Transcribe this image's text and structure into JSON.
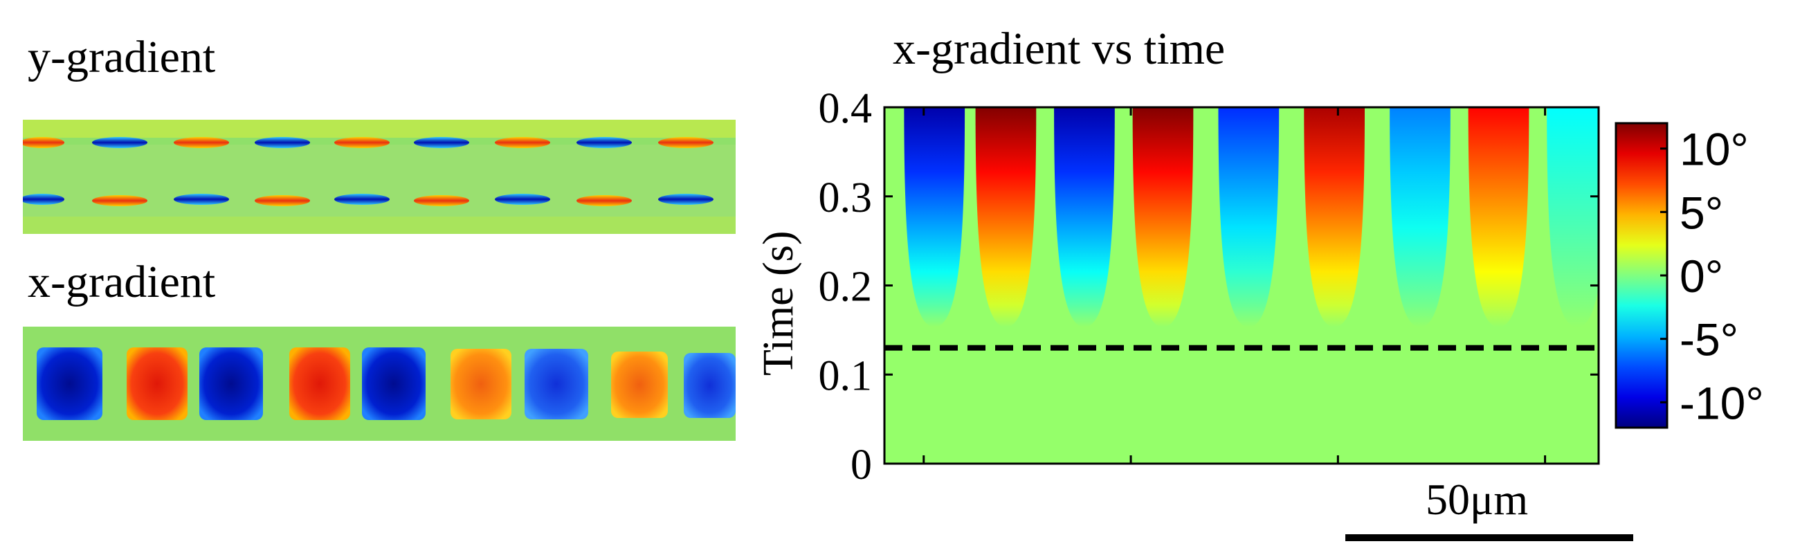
{
  "panels": {
    "y_gradient_title": "y-gradient",
    "x_gradient_title": "x-gradient",
    "heatmap_title": "x-gradient vs time"
  },
  "scale_bar": {
    "label": "50μm"
  },
  "colors": {
    "background_green": "#8fe06a",
    "dashed_line": "#000000"
  },
  "chart_data": {
    "type": "heatmap",
    "title": "x-gradient vs time",
    "xlabel": "",
    "ylabel": "Time (s)",
    "ylim": [
      0,
      0.4
    ],
    "yticks": [
      0,
      0.1,
      0.2,
      0.3,
      0.4
    ],
    "ytick_labels": [
      "0",
      "0.1",
      "0.2",
      "0.3",
      "0.4"
    ],
    "xticks_count": 4,
    "onset_time": 0.13,
    "colorbar": {
      "range": [
        -12,
        12
      ],
      "ticks": [
        10,
        5,
        0,
        -5,
        -10
      ],
      "tick_labels": [
        "10°",
        "5°",
        "0°",
        "-5°",
        "-10°"
      ]
    },
    "stripes": [
      {
        "x": 0.07,
        "peak": -11
      },
      {
        "x": 0.17,
        "peak": 12
      },
      {
        "x": 0.28,
        "peak": -11
      },
      {
        "x": 0.39,
        "peak": 12
      },
      {
        "x": 0.51,
        "peak": -8
      },
      {
        "x": 0.63,
        "peak": 11
      },
      {
        "x": 0.75,
        "peak": -6
      },
      {
        "x": 0.86,
        "peak": 9
      },
      {
        "x": 0.97,
        "peak": -3
      }
    ]
  }
}
